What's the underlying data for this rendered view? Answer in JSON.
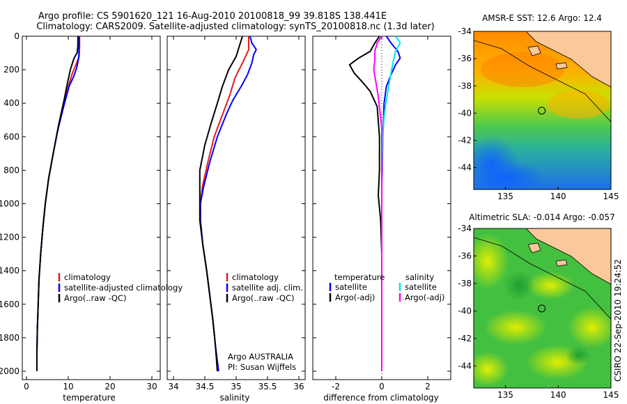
{
  "header": {
    "line1": "Argo profile: CS 5901620_121 16-Aug-2010 20100818_99 39.818S 138.441E",
    "line2": "Climatology: CARS2009. Satellite-adjusted climatology: synTS_20100818.nc (1.3d later)"
  },
  "side_caption": "CSIRO 22-Sep-2010 19:24:52",
  "colors": {
    "climatology": "#e41a1c",
    "satellite": "#0000ff",
    "argo": "#000000",
    "satellite_salinity": "#00e5ee",
    "argo_adj_salinity": "#ff00ff"
  },
  "chart_data": [
    {
      "type": "line",
      "xlabel": "temperature",
      "xlim": [
        -1,
        32
      ],
      "ylim": [
        0,
        2050
      ],
      "y_ticks": [
        0,
        200,
        400,
        600,
        800,
        1000,
        1200,
        1400,
        1600,
        1800,
        2000
      ],
      "x_ticks": [
        0,
        10,
        20,
        30
      ],
      "legend": [
        "climatology",
        "satellite-adjusted climatology",
        "Argo(..raw -QC)"
      ],
      "legend_placement": "right",
      "series": [
        {
          "name": "climatology",
          "color": "#e41a1c",
          "points": [
            [
              12.7,
              0
            ],
            [
              12.7,
              60
            ],
            [
              12.6,
              120
            ],
            [
              12.0,
              160
            ],
            [
              11.0,
              220
            ],
            [
              10.0,
              300
            ],
            [
              8.8,
              420
            ],
            [
              7.5,
              560
            ],
            [
              6.4,
              700
            ],
            [
              5.3,
              850
            ],
            [
              4.5,
              1000
            ],
            [
              3.9,
              1150
            ],
            [
              3.4,
              1300
            ],
            [
              3.0,
              1450
            ],
            [
              2.8,
              1600
            ],
            [
              2.6,
              1750
            ],
            [
              2.5,
              1880
            ],
            [
              2.5,
              2000
            ]
          ]
        },
        {
          "name": "satellite-adjusted climatology",
          "color": "#0000ff",
          "points": [
            [
              12.6,
              0
            ],
            [
              12.6,
              60
            ],
            [
              12.5,
              130
            ],
            [
              12.0,
              190
            ],
            [
              11.3,
              240
            ],
            [
              10.2,
              300
            ],
            [
              8.9,
              420
            ],
            [
              7.5,
              560
            ],
            [
              6.4,
              700
            ],
            [
              5.3,
              850
            ],
            [
              4.5,
              1000
            ],
            [
              3.9,
              1150
            ],
            [
              3.4,
              1300
            ],
            [
              3.0,
              1450
            ],
            [
              2.8,
              1600
            ],
            [
              2.6,
              1750
            ],
            [
              2.5,
              1880
            ],
            [
              2.5,
              2000
            ]
          ]
        },
        {
          "name": "Argo(..raw -QC)",
          "color": "#000000",
          "points": [
            [
              12.3,
              0
            ],
            [
              12.3,
              60
            ],
            [
              12.1,
              100
            ],
            [
              11.4,
              130
            ],
            [
              11.0,
              160
            ],
            [
              10.5,
              200
            ],
            [
              9.8,
              280
            ],
            [
              9.0,
              380
            ],
            [
              7.6,
              540
            ],
            [
              6.4,
              700
            ],
            [
              5.3,
              850
            ],
            [
              4.5,
              1000
            ],
            [
              3.9,
              1150
            ],
            [
              3.4,
              1300
            ],
            [
              3.0,
              1450
            ],
            [
              2.8,
              1600
            ],
            [
              2.6,
              1750
            ],
            [
              2.5,
              1880
            ],
            [
              2.5,
              2000
            ]
          ]
        }
      ]
    },
    {
      "type": "line",
      "xlabel": "salinity",
      "xlim": [
        33.9,
        36.1
      ],
      "ylim": [
        0,
        2050
      ],
      "x_ticks": [
        34,
        34.5,
        35,
        35.5,
        36
      ],
      "legend": [
        "climatology",
        "satellite adj. clim.",
        "Argo(..raw -QC)"
      ],
      "legend_placement": "right",
      "annotation": [
        "Argo AUSTRALIA",
        "PI: Susan Wijffels"
      ],
      "series": [
        {
          "name": "climatology",
          "color": "#e41a1c",
          "points": [
            [
              35.2,
              0
            ],
            [
              35.2,
              80
            ],
            [
              35.1,
              160
            ],
            [
              34.98,
              250
            ],
            [
              34.9,
              350
            ],
            [
              34.8,
              450
            ],
            [
              34.65,
              600
            ],
            [
              34.55,
              750
            ],
            [
              34.46,
              900
            ],
            [
              34.43,
              1000
            ],
            [
              34.43,
              1100
            ],
            [
              34.47,
              1250
            ],
            [
              34.53,
              1400
            ],
            [
              34.58,
              1550
            ],
            [
              34.63,
              1700
            ],
            [
              34.67,
              1850
            ],
            [
              34.7,
              2000
            ]
          ]
        },
        {
          "name": "satellite adj. clim.",
          "color": "#0000ff",
          "points": [
            [
              35.22,
              0
            ],
            [
              35.25,
              40
            ],
            [
              35.32,
              80
            ],
            [
              35.28,
              110
            ],
            [
              35.25,
              160
            ],
            [
              35.18,
              230
            ],
            [
              35.08,
              300
            ],
            [
              34.95,
              380
            ],
            [
              34.85,
              460
            ],
            [
              34.7,
              600
            ],
            [
              34.58,
              750
            ],
            [
              34.48,
              900
            ],
            [
              34.43,
              1000
            ],
            [
              34.43,
              1100
            ],
            [
              34.47,
              1250
            ],
            [
              34.53,
              1400
            ],
            [
              34.58,
              1550
            ],
            [
              34.63,
              1700
            ],
            [
              34.67,
              1850
            ],
            [
              34.72,
              2000
            ]
          ]
        },
        {
          "name": "Argo(..raw -QC)",
          "color": "#000000",
          "points": [
            [
              35.1,
              0
            ],
            [
              35.05,
              60
            ],
            [
              35.0,
              120
            ],
            [
              34.88,
              200
            ],
            [
              34.78,
              300
            ],
            [
              34.7,
              400
            ],
            [
              34.6,
              520
            ],
            [
              34.5,
              650
            ],
            [
              34.42,
              800
            ],
            [
              34.42,
              1000
            ],
            [
              34.42,
              1100
            ],
            [
              34.47,
              1250
            ],
            [
              34.53,
              1400
            ],
            [
              34.58,
              1550
            ],
            [
              34.63,
              1700
            ],
            [
              34.67,
              1850
            ],
            [
              34.7,
              2000
            ]
          ]
        }
      ]
    },
    {
      "type": "line",
      "xlabel": "difference from climatology",
      "xlim": [
        -3,
        3
      ],
      "ylim": [
        0,
        2050
      ],
      "x_ticks": [
        -2,
        0,
        2
      ],
      "legend_groups": [
        {
          "title": "temperature",
          "items": [
            "satellite",
            "Argo(-adj)"
          ]
        },
        {
          "title": "salinity",
          "items": [
            "satellite",
            "Argo(-adj)"
          ]
        }
      ],
      "legend_placement": "bottom",
      "series": [
        {
          "name": "temperature satellite",
          "color": "#0000ff",
          "points": [
            [
              0.2,
              0
            ],
            [
              0.4,
              40
            ],
            [
              0.7,
              90
            ],
            [
              0.8,
              130
            ],
            [
              0.6,
              170
            ],
            [
              0.4,
              230
            ],
            [
              0.2,
              300
            ],
            [
              0.1,
              400
            ],
            [
              0.05,
              600
            ],
            [
              0,
              900
            ],
            [
              0,
              2000
            ]
          ]
        },
        {
          "name": "temperature Argo(-adj)",
          "color": "#000000",
          "points": [
            [
              -0.1,
              0
            ],
            [
              -0.3,
              40
            ],
            [
              -0.5,
              90
            ],
            [
              -1.0,
              130
            ],
            [
              -1.4,
              170
            ],
            [
              -1.2,
              220
            ],
            [
              -0.8,
              280
            ],
            [
              -0.5,
              330
            ],
            [
              -0.2,
              420
            ],
            [
              -0.1,
              600
            ],
            [
              -0.1,
              800
            ],
            [
              -0.15,
              950
            ],
            [
              -0.05,
              1100
            ],
            [
              0,
              1300
            ],
            [
              0,
              2000
            ]
          ]
        },
        {
          "name": "salinity satellite",
          "color": "#00e5ee",
          "points": [
            [
              0.6,
              0
            ],
            [
              0.8,
              40
            ],
            [
              0.6,
              90
            ],
            [
              0.5,
              150
            ],
            [
              0.4,
              220
            ],
            [
              0.3,
              300
            ],
            [
              0.2,
              380
            ],
            [
              0.1,
              480
            ],
            [
              0.05,
              600
            ],
            [
              0,
              800
            ],
            [
              0,
              2000
            ]
          ]
        },
        {
          "name": "salinity Argo(-adj)",
          "color": "#ff00ff",
          "points": [
            [
              0,
              0
            ],
            [
              -0.2,
              40
            ],
            [
              -0.3,
              90
            ],
            [
              -0.3,
              140
            ],
            [
              -0.35,
              200
            ],
            [
              -0.25,
              280
            ],
            [
              -0.15,
              360
            ],
            [
              -0.08,
              450
            ],
            [
              0,
              550
            ],
            [
              0,
              2000
            ]
          ]
        }
      ]
    },
    {
      "type": "heatmap",
      "title": "AMSR-E SST: 12.6 Argo: 12.4",
      "xlim": [
        132,
        145
      ],
      "ylim": [
        -45.6,
        -34
      ],
      "x_ticks": [
        135,
        140,
        145
      ],
      "y_ticks": [
        -34,
        -36,
        -38,
        -40,
        -42,
        -44
      ],
      "marker": [
        138.441,
        -39.818
      ]
    },
    {
      "type": "heatmap",
      "title": "Altimetric SLA: -0.014 Argo: -0.057",
      "xlim": [
        132,
        145
      ],
      "ylim": [
        -45.6,
        -34
      ],
      "x_ticks": [
        135,
        140,
        145
      ],
      "y_ticks": [
        -34,
        -36,
        -38,
        -40,
        -42,
        -44
      ],
      "marker": [
        138.441,
        -39.818
      ]
    }
  ]
}
